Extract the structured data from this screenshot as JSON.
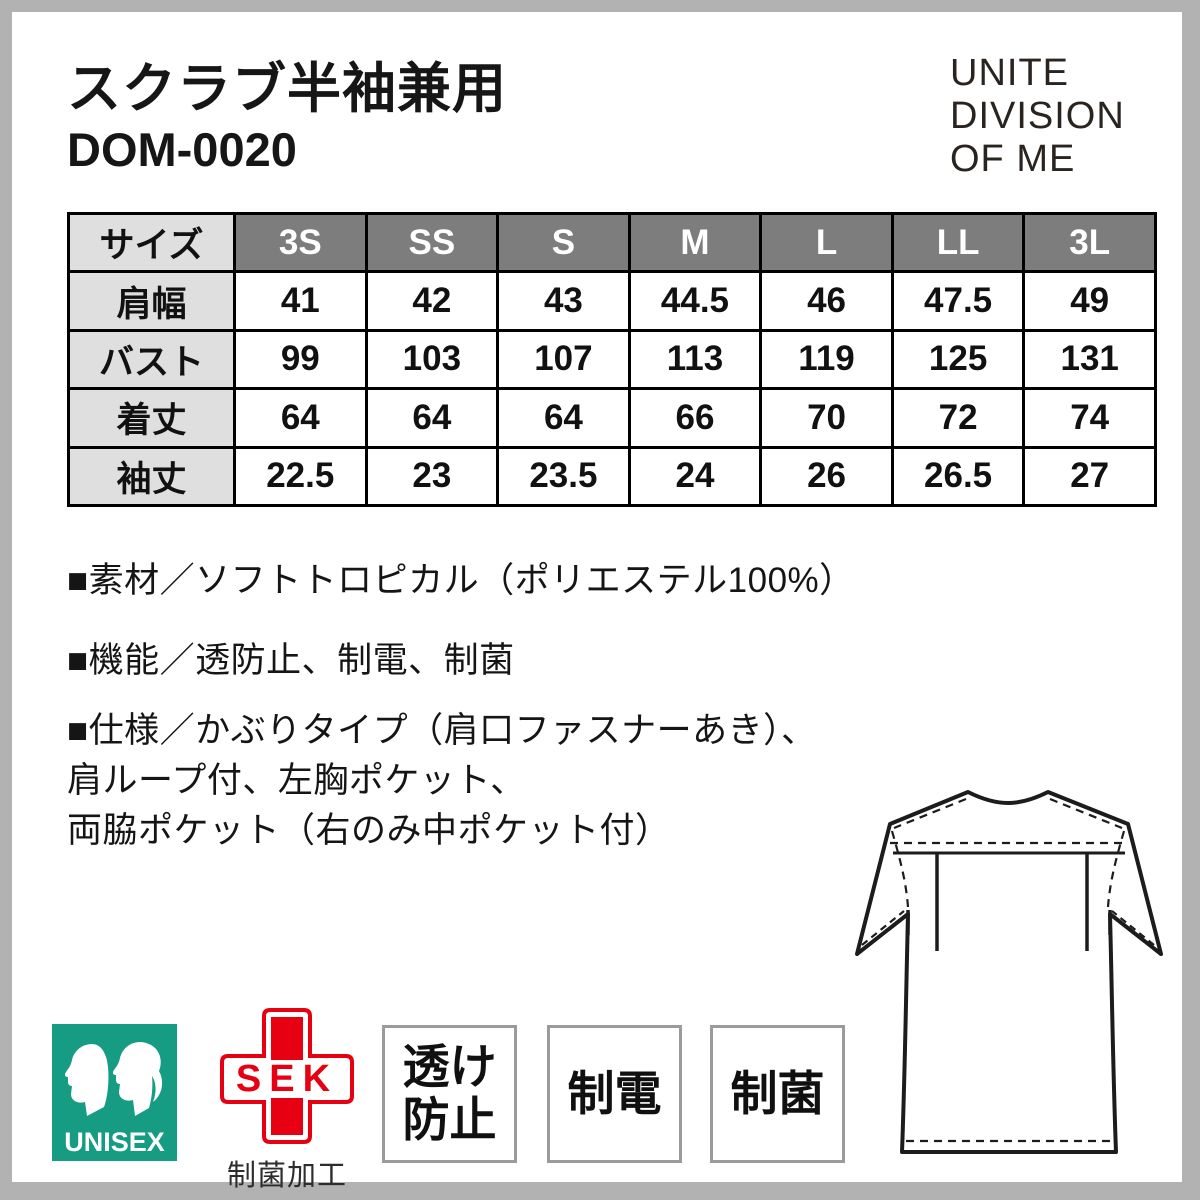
{
  "product": {
    "name": "スクラブ半袖兼用",
    "code": "DOM-0020"
  },
  "brand": {
    "line1": "UNITE",
    "line2": "DIVISION",
    "line3": "OF ME"
  },
  "size_table": {
    "header": [
      "サイズ",
      "3S",
      "SS",
      "S",
      "M",
      "L",
      "LL",
      "3L"
    ],
    "rows": [
      {
        "label": "肩幅",
        "values": [
          "41",
          "42",
          "43",
          "44.5",
          "46",
          "47.5",
          "49"
        ]
      },
      {
        "label": "バスト",
        "values": [
          "99",
          "103",
          "107",
          "113",
          "119",
          "125",
          "131"
        ]
      },
      {
        "label": "着丈",
        "values": [
          "64",
          "64",
          "64",
          "66",
          "70",
          "72",
          "74"
        ]
      },
      {
        "label": "袖丈",
        "values": [
          "22.5",
          "23",
          "23.5",
          "24",
          "26",
          "26.5",
          "27"
        ]
      }
    ]
  },
  "details": {
    "material": "■素材／ソフトトロピカル（ポリエステル100%）",
    "functions": "■機能／透防止、制電、制菌",
    "spec": "■仕様／かぶりタイプ（肩口ファスナーあき）、\n肩ループ付、左胸ポケット、\n両脇ポケット（右のみ中ポケット付）"
  },
  "badges": {
    "unisex_label": "UNISEX",
    "sek_label": "SEK",
    "sek_caption": "制菌加工",
    "feature1": "透け\n防止",
    "feature2": "制電",
    "feature3": "制菌"
  },
  "colors": {
    "unisex_green": "#169c82",
    "sek_red": "#e60012",
    "table_header_gray": "#7d7d7d",
    "table_label_gray": "#dfdfdf",
    "frame_gray": "#b2b2b2"
  }
}
